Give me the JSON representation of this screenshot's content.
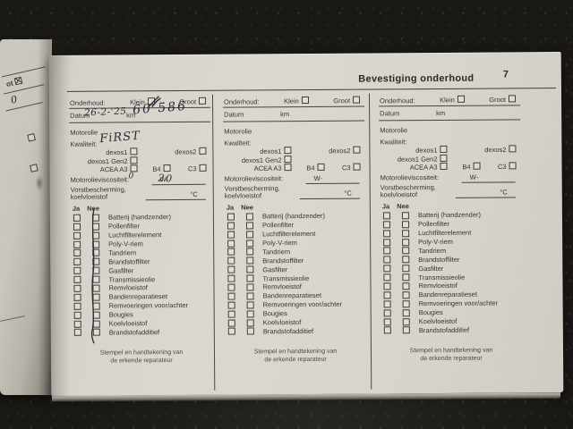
{
  "header": {
    "title": "Bevestiging onderhoud",
    "page_number": "7"
  },
  "labels": {
    "onderhoud": "Onderhoud:",
    "klein": "Klein",
    "groot": "Groot",
    "datum": "Datum",
    "km": "km",
    "motorolie": "Motorolie",
    "kwaliteit": "Kwaliteit:",
    "dexos1": "dexos1",
    "dexos2": "dexos2",
    "dexos1_gen2": "dexos1 Gen2",
    "acea_a3": "ACEA A3",
    "b4": "B4",
    "c3": "C3",
    "viscositeit": "Motorolieviscositeit:",
    "w": "W-",
    "vorst1": "Vorstbescherming,",
    "vorst2": "koelvloeistof",
    "celsius": "°C",
    "ja": "Ja",
    "nee": "Nee",
    "stamp1": "Stempel en handtekening van",
    "stamp2": "de erkende reparateur"
  },
  "checklist_items": [
    "Batterij (handzender)",
    "Pollenfilter",
    "Luchtfilterelement",
    "Poly-V-riem",
    "Tandriem",
    "Brandstoffilter",
    "Gasfilter",
    "Transmissieolie",
    "Remvloeistof",
    "Bandenreparatieset",
    "Remvoeringen voor/achter",
    "Bougies",
    "Koelvloeistof",
    "Brandstofadditief"
  ],
  "columns": [
    {
      "hand": {
        "klein_checked": true,
        "datum": "26-2-'25",
        "km": "60 586",
        "kwaliteit": "FiRST",
        "visc_pre": "0",
        "visc_suf": "20",
        "nee_line": true
      }
    },
    {
      "hand": {}
    },
    {
      "hand": {}
    }
  ],
  "left_page": {
    "fragment": "ot",
    "hand_mark": "0"
  },
  "colors": {
    "background": "#191814",
    "page": "#d8d5cc",
    "ink": "#2b2c35",
    "print": "#35342f"
  }
}
